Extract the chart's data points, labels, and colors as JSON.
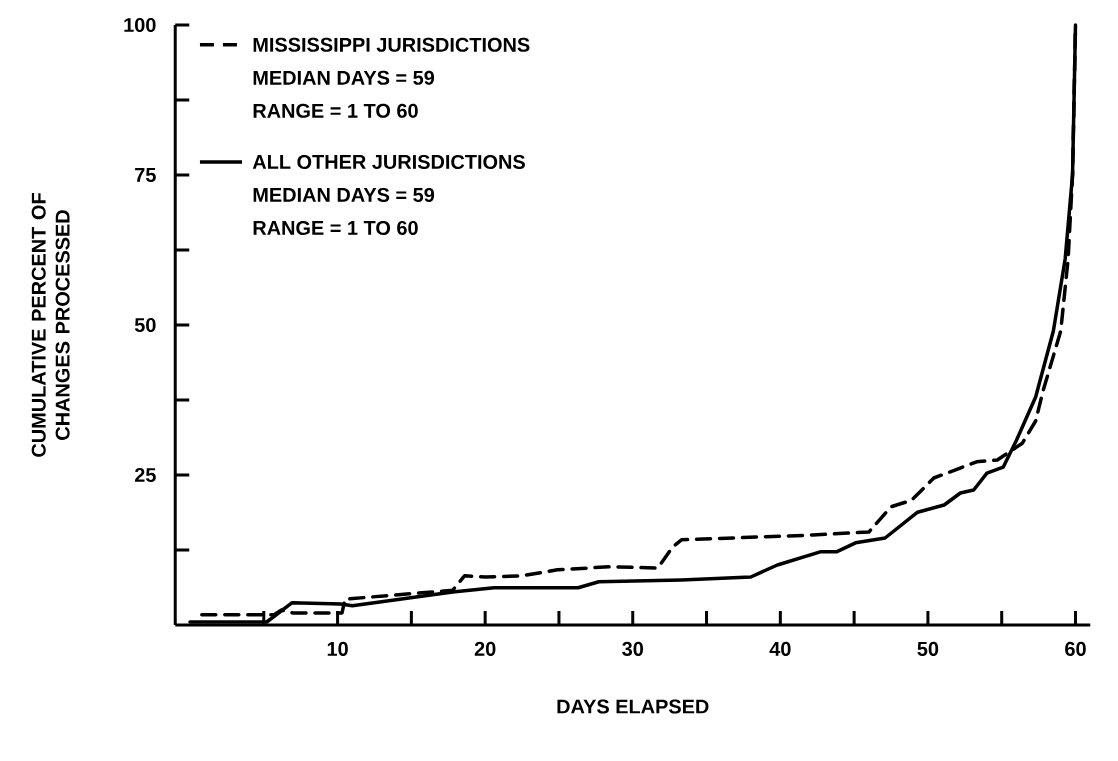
{
  "chart_data": {
    "type": "line",
    "xlabel": "DAYS ELAPSED",
    "ylabel": "CUMULATIVE PERCENT OF CHANGES PROCESSED",
    "xlim": [
      -1,
      61
    ],
    "xticks": [
      {
        "value": 5,
        "label": null
      },
      10,
      {
        "value": 15,
        "label": null
      },
      20,
      {
        "value": 25,
        "label": null
      },
      30,
      {
        "value": 35,
        "label": null
      },
      40,
      {
        "value": 45,
        "label": null
      },
      50,
      {
        "value": 55,
        "label": null
      },
      60
    ],
    "ylim": [
      0,
      100
    ],
    "yticks": [
      {
        "value": 12.5,
        "label": null
      },
      25,
      {
        "value": 37.5,
        "label": null
      },
      50,
      {
        "value": 62.5,
        "label": null
      },
      75,
      {
        "value": 87.5,
        "label": null
      },
      100
    ],
    "legend": "top left",
    "grid": false,
    "series": [
      {
        "name": "MISSISSIPPI JURISDICTIONS",
        "color": "#000000",
        "line_style": "dashed",
        "x": [
          0.8,
          5.7,
          6.2,
          7,
          10.3,
          10.5,
          17.8,
          18.6,
          20,
          22.5,
          24.9,
          28.4,
          31.7,
          32.7,
          33.3,
          42.2,
          46,
          47.5,
          48.9,
          50.4,
          53.3,
          54.7,
          56.4,
          57.3,
          57.8,
          59,
          59.5,
          59.8,
          60
        ],
        "values": [
          1.7,
          1.7,
          2.5,
          2,
          2,
          4.3,
          5.8,
          8.2,
          8,
          8.2,
          9.2,
          9.7,
          9.5,
          13,
          14.2,
          15,
          15.5,
          19.7,
          20.8,
          24.5,
          27.2,
          27.5,
          30.3,
          34,
          39,
          49,
          61,
          75,
          100
        ]
      },
      {
        "name": "ALL OTHER JURISDICTIONS",
        "color": "#000000",
        "line_style": "solid",
        "x": [
          0,
          5.2,
          6.9,
          10.2,
          11,
          17.8,
          20.6,
          26.3,
          27.7,
          33.3,
          38,
          39.8,
          42.7,
          43.8,
          45.1,
          47.1,
          49.3,
          51.1,
          52.2,
          53.1,
          54,
          55.1,
          56,
          57.3,
          58.5,
          59.3,
          59.8,
          60
        ],
        "values": [
          0.5,
          0.5,
          3.7,
          3.5,
          3.2,
          5.5,
          6.2,
          6.2,
          7.2,
          7.5,
          8,
          10,
          12.2,
          12.2,
          13.7,
          14.5,
          18.8,
          20,
          22,
          22.5,
          25.3,
          26.3,
          30.8,
          38,
          49,
          61,
          75,
          100
        ]
      }
    ],
    "annotations": [
      "MEDIAN DAYS = 59",
      "RANGE = 1 TO 60",
      "MEDIAN DAYS = 59",
      "RANGE = 1 TO 60"
    ]
  }
}
